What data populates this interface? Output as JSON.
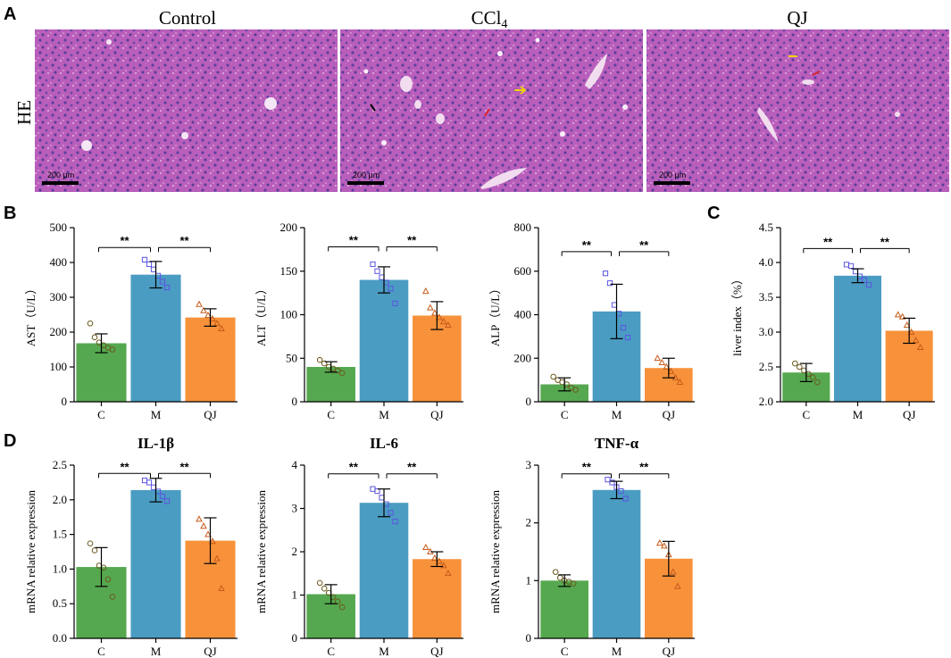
{
  "panel_letters": {
    "a": "A",
    "b": "B",
    "c": "C",
    "d": "D"
  },
  "histology": {
    "row_label": "HE",
    "scale_label": "200 μm",
    "panels": [
      {
        "title": "Control",
        "title_sub": ""
      },
      {
        "title": "CCl",
        "title_sub": "4"
      },
      {
        "title": "QJ",
        "title_sub": ""
      }
    ]
  },
  "colors": {
    "C": "#55a84f",
    "M": "#4a9cc2",
    "QJ": "#f7923b",
    "tissue": "#b259b4",
    "nuclei": "#5d3f9e"
  },
  "significance_label": "**",
  "chart_data": [
    {
      "id": "ast",
      "type": "bar",
      "title": "",
      "xlabel": "",
      "ylabel": "AST（U/L）",
      "categories": [
        "C",
        "M",
        "QJ"
      ],
      "values": [
        168,
        365,
        242
      ],
      "errors": [
        27,
        38,
        25
      ],
      "ylim": [
        0,
        500
      ],
      "yticks": [
        0,
        100,
        200,
        300,
        400,
        500
      ],
      "points": [
        [
          225,
          185,
          170,
          162,
          155,
          150
        ],
        [
          408,
          395,
          380,
          362,
          345,
          328
        ],
        [
          280,
          262,
          248,
          238,
          225,
          210
        ]
      ],
      "brackets": [
        [
          0,
          1,
          443
        ],
        [
          1,
          2,
          443
        ]
      ]
    },
    {
      "id": "alt",
      "type": "bar",
      "title": "",
      "xlabel": "",
      "ylabel": "ALT（U/L）",
      "categories": [
        "C",
        "M",
        "QJ"
      ],
      "values": [
        40,
        140,
        99
      ],
      "errors": [
        6,
        15,
        16
      ],
      "ylim": [
        0,
        200
      ],
      "yticks": [
        0,
        50,
        100,
        150,
        200
      ],
      "points": [
        [
          48,
          44,
          40,
          38,
          36,
          33
        ],
        [
          158,
          150,
          143,
          137,
          130,
          113
        ],
        [
          127,
          108,
          102,
          97,
          92,
          88
        ]
      ],
      "brackets": [
        [
          0,
          1,
          178
        ],
        [
          1,
          2,
          178
        ]
      ]
    },
    {
      "id": "alp",
      "type": "bar",
      "title": "",
      "xlabel": "",
      "ylabel": "ALP（U/L）",
      "categories": [
        "C",
        "M",
        "QJ"
      ],
      "values": [
        80,
        415,
        155
      ],
      "errors": [
        30,
        125,
        45
      ],
      "ylim": [
        0,
        800
      ],
      "yticks": [
        0,
        200,
        400,
        600,
        800
      ],
      "points": [
        [
          115,
          100,
          90,
          80,
          65,
          55
        ],
        [
          590,
          545,
          445,
          405,
          340,
          295
        ],
        [
          200,
          180,
          160,
          140,
          110,
          90
        ]
      ],
      "brackets": [
        [
          0,
          1,
          690
        ],
        [
          1,
          2,
          690
        ]
      ]
    },
    {
      "id": "liver",
      "type": "bar",
      "title": "",
      "xlabel": "",
      "ylabel": "liver index（%）",
      "categories": [
        "C",
        "M",
        "QJ"
      ],
      "values": [
        2.42,
        3.81,
        3.02
      ],
      "errors": [
        0.13,
        0.1,
        0.18
      ],
      "ylim": [
        2.0,
        4.5
      ],
      "yticks": [
        2.0,
        2.5,
        3.0,
        3.5,
        4.0,
        4.5
      ],
      "tick_labels": [
        "2.0",
        "2.5",
        "3.0",
        "3.5",
        "4.0",
        "4.5"
      ],
      "points": [
        [
          2.55,
          2.5,
          2.45,
          2.4,
          2.35,
          2.28
        ],
        [
          3.97,
          3.95,
          3.87,
          3.8,
          3.75,
          3.68
        ],
        [
          3.25,
          3.22,
          3.1,
          3.0,
          2.88,
          2.78
        ]
      ],
      "brackets": [
        [
          0,
          1,
          4.2
        ],
        [
          1,
          2,
          4.2
        ]
      ]
    },
    {
      "id": "il1b",
      "type": "bar",
      "title": "IL-1β",
      "xlabel": "",
      "ylabel": "mRNA relative expression",
      "categories": [
        "C",
        "M",
        "QJ"
      ],
      "values": [
        1.03,
        2.14,
        1.41
      ],
      "errors": [
        0.28,
        0.17,
        0.33
      ],
      "ylim": [
        0,
        2.5
      ],
      "yticks": [
        0,
        0.5,
        1.0,
        1.5,
        2.0,
        2.5
      ],
      "tick_labels": [
        "0.0",
        "0.5",
        "1.0",
        "1.5",
        "2.0",
        "2.5"
      ],
      "points": [
        [
          1.37,
          1.27,
          1.05,
          1.02,
          0.85,
          0.6
        ],
        [
          2.28,
          2.25,
          2.18,
          2.12,
          2.05,
          1.98
        ],
        [
          1.72,
          1.62,
          1.5,
          1.4,
          1.15,
          0.72
        ]
      ],
      "brackets": [
        [
          0,
          1,
          2.38
        ],
        [
          1,
          2,
          2.38
        ]
      ]
    },
    {
      "id": "il6",
      "type": "bar",
      "title": "IL-6",
      "xlabel": "",
      "ylabel": "mRNA relative expression",
      "categories": [
        "C",
        "M",
        "QJ"
      ],
      "values": [
        1.02,
        3.13,
        1.83
      ],
      "errors": [
        0.22,
        0.32,
        0.17
      ],
      "ylim": [
        0,
        4
      ],
      "yticks": [
        0,
        1,
        2,
        3,
        4
      ],
      "points": [
        [
          1.28,
          1.15,
          1.05,
          0.95,
          0.85,
          0.72
        ],
        [
          3.45,
          3.4,
          3.25,
          3.1,
          2.9,
          2.7
        ],
        [
          2.1,
          2.0,
          1.85,
          1.78,
          1.68,
          1.5
        ]
      ],
      "brackets": [
        [
          0,
          1,
          3.8
        ],
        [
          1,
          2,
          3.8
        ]
      ]
    },
    {
      "id": "tnfa",
      "type": "bar",
      "title": "TNF-α",
      "xlabel": "",
      "ylabel": "mRNA relative expression",
      "categories": [
        "C",
        "M",
        "QJ"
      ],
      "values": [
        1.0,
        2.57,
        1.38
      ],
      "errors": [
        0.1,
        0.15,
        0.3
      ],
      "ylim": [
        0,
        3
      ],
      "yticks": [
        0,
        1,
        2,
        3
      ],
      "points": [
        [
          1.15,
          1.05,
          1.0,
          0.98,
          0.95
        ],
        [
          2.75,
          2.7,
          2.62,
          2.55,
          2.42
        ],
        [
          1.65,
          1.6,
          1.45,
          1.15,
          0.9
        ]
      ],
      "brackets": [
        [
          0,
          1,
          2.85
        ],
        [
          1,
          2,
          2.85
        ]
      ]
    }
  ]
}
